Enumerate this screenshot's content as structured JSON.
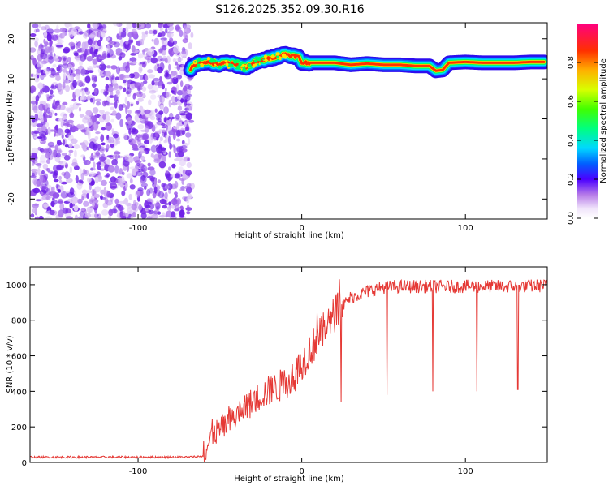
{
  "page_title": "S126.2025.352.09.30.R16",
  "chart_data": [
    {
      "type": "heatmap",
      "title": "S126.2025.352.09.30.R16",
      "xlabel": "Height of straight line (km)",
      "ylabel": "Frequency (Hz)",
      "xlim": [
        -166,
        150
      ],
      "ylim": [
        -25,
        24
      ],
      "x_ticks": [
        -100,
        0,
        100
      ],
      "y_ticks": [
        -20,
        -10,
        0,
        10,
        20
      ],
      "noise_region_x": [
        -166,
        -68
      ],
      "signal_track": {
        "x": [
          -68,
          -64,
          -58,
          -52,
          -46,
          -40,
          -34,
          -28,
          -22,
          -16,
          -10,
          -6,
          -2,
          0,
          10,
          20,
          30,
          40,
          50,
          60,
          70,
          78,
          82,
          86,
          90,
          100,
          110,
          120,
          130,
          140,
          148
        ],
        "freq": [
          12.5,
          13.8,
          14.3,
          13.5,
          14.0,
          13.5,
          13.0,
          14.2,
          14.8,
          15.5,
          16.2,
          15.8,
          15.5,
          14.0,
          14.0,
          14.0,
          13.5,
          13.8,
          13.5,
          13.5,
          13.2,
          13.2,
          12.0,
          12.2,
          14.0,
          14.2,
          14.0,
          14.0,
          14.0,
          14.2,
          14.2
        ]
      },
      "colorbar": {
        "label": "Normalized spectral amplitude",
        "range": [
          0,
          1
        ],
        "ticks": [
          "0.0",
          "0.2",
          "0.4",
          "0.6",
          "0.8"
        ]
      }
    },
    {
      "type": "line",
      "xlabel": "Height of straight line (km)",
      "ylabel": "SNR (10 * v/v)",
      "xlim": [
        -166,
        150
      ],
      "ylim": [
        0,
        1100
      ],
      "x_ticks": [
        -100,
        0,
        100
      ],
      "y_ticks": [
        0,
        200,
        400,
        600,
        800,
        1000
      ],
      "line_color": "#e53935",
      "trend": {
        "x": [
          -166,
          -70,
          -60,
          -55,
          -45,
          -35,
          -25,
          -15,
          -5,
          0,
          10,
          15,
          20,
          25,
          30,
          40,
          45,
          50,
          60,
          70,
          80,
          100,
          120,
          150
        ],
        "y": [
          30,
          30,
          35,
          150,
          220,
          300,
          380,
          420,
          480,
          560,
          700,
          760,
          830,
          880,
          930,
          960,
          975,
          985,
          990,
          990,
          990,
          990,
          990,
          995
        ]
      },
      "dips": [
        {
          "x": 24,
          "y": 340
        },
        {
          "x": 52,
          "y": 380
        },
        {
          "x": 80,
          "y": 400
        },
        {
          "x": 107,
          "y": 400
        },
        {
          "x": 132,
          "y": 410
        }
      ]
    }
  ]
}
